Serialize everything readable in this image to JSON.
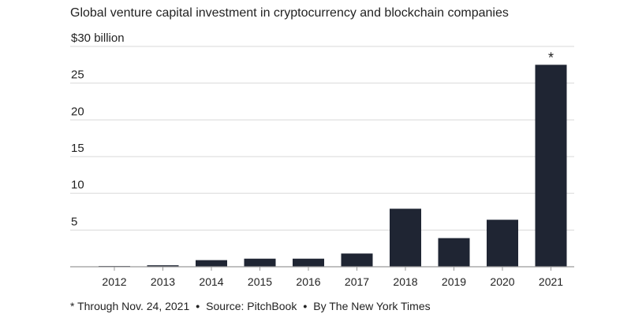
{
  "chart_data": {
    "type": "bar",
    "title": "Global venture capital investment in cryptocurrency and blockchain companies",
    "ylabel": "$30 billion",
    "xlabel": "",
    "categories": [
      "2012",
      "2013",
      "2014",
      "2015",
      "2016",
      "2017",
      "2018",
      "2019",
      "2020",
      "2021"
    ],
    "values": [
      0.1,
      0.2,
      0.9,
      1.1,
      1.1,
      1.8,
      7.9,
      3.9,
      6.4,
      27.5
    ],
    "ylim": [
      0,
      30
    ],
    "y_ticks": [
      {
        "value": 5,
        "label": "5"
      },
      {
        "value": 10,
        "label": "10"
      },
      {
        "value": 15,
        "label": "15"
      },
      {
        "value": 20,
        "label": "20"
      },
      {
        "value": 25,
        "label": "25"
      },
      {
        "value": 30,
        "label": "$30 billion"
      }
    ],
    "grid": true,
    "bar_color": "#1f2533",
    "grid_color": "#d9d9d9",
    "annotations": [
      {
        "category": "2021",
        "text": "*"
      }
    ]
  },
  "footnote": {
    "note": "* Through Nov. 24, 2021",
    "source": "Source: PitchBook",
    "credit": "By The New York Times",
    "separator": "•"
  }
}
